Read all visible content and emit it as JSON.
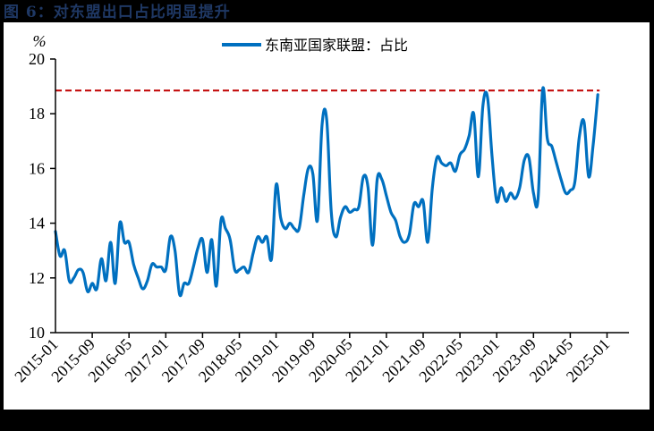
{
  "figure": {
    "title": "图 6：对东盟出口占比明显提升"
  },
  "chart_data": {
    "type": "line",
    "title": "图 6：对东盟出口占比明显提升",
    "ylabel": "%",
    "xlabel": "",
    "ylim": [
      10,
      20
    ],
    "yticks": [
      10,
      12,
      14,
      16,
      18,
      20
    ],
    "xtick_labels": [
      "2015-01",
      "2015-09",
      "2016-05",
      "2017-01",
      "2017-09",
      "2018-05",
      "2019-01",
      "2019-09",
      "2020-05",
      "2021-01",
      "2021-09",
      "2022-05",
      "2023-01",
      "2023-09",
      "2024-05",
      "2025-01"
    ],
    "grid": false,
    "legend_position": "top-center",
    "series": [
      {
        "name": "东南亚国家联盟：占比",
        "color": "#0070c0",
        "start": "2015-01",
        "frequency": "monthly",
        "values": [
          13.7,
          12.8,
          13.0,
          11.9,
          12.0,
          12.3,
          12.2,
          11.5,
          11.8,
          11.6,
          12.7,
          11.9,
          13.3,
          11.8,
          14.0,
          13.3,
          13.3,
          12.5,
          12.0,
          11.6,
          11.9,
          12.5,
          12.4,
          12.4,
          12.3,
          13.5,
          13.0,
          11.4,
          11.8,
          11.8,
          12.4,
          13.1,
          13.4,
          12.2,
          13.4,
          11.7,
          14.1,
          13.8,
          13.4,
          12.3,
          12.3,
          12.4,
          12.2,
          12.9,
          13.5,
          13.3,
          13.5,
          12.7,
          15.4,
          14.2,
          13.8,
          14.0,
          13.8,
          13.8,
          15.0,
          16.0,
          15.8,
          14.1,
          17.6,
          17.8,
          14.4,
          13.5,
          14.2,
          14.6,
          14.4,
          14.5,
          14.6,
          15.7,
          15.3,
          13.2,
          15.6,
          15.6,
          15.0,
          14.4,
          14.1,
          13.5,
          13.3,
          13.6,
          14.7,
          14.6,
          14.8,
          13.3,
          15.3,
          16.4,
          16.2,
          16.1,
          16.2,
          15.9,
          16.5,
          16.7,
          17.2,
          18.0,
          15.7,
          18.3,
          18.6,
          16.4,
          14.8,
          15.3,
          14.8,
          15.1,
          14.9,
          15.3,
          16.3,
          16.4,
          15.1,
          14.9,
          18.9,
          17.1,
          16.8,
          16.2,
          15.6,
          15.1,
          15.2,
          15.5,
          17.2,
          17.7,
          15.7,
          16.9,
          18.7
        ]
      }
    ],
    "reference_lines": [
      {
        "type": "horizontal",
        "value": 18.85,
        "style": "dashed",
        "color": "#c00000"
      }
    ]
  },
  "legend": {
    "label": "东南亚国家联盟：占比"
  },
  "axis": {
    "y_unit": "%"
  }
}
